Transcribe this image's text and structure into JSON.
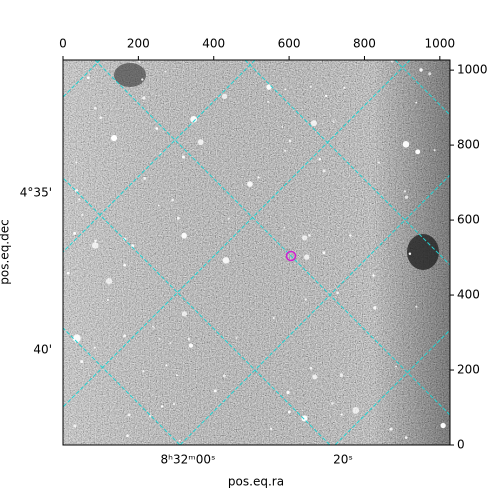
{
  "chart_data": {
    "type": "image",
    "xlabel": "pos.eq.ra",
    "ylabel": "pos.eq.dec",
    "xlim": [
      0,
      1027
    ],
    "ylim": [
      0,
      1027
    ],
    "xticks": [
      0,
      200,
      400,
      600,
      800,
      1000
    ],
    "yticks": [
      0,
      200,
      400,
      600,
      800,
      1000
    ],
    "ra_tick_labels": [
      "8ʰ32ᵐ00ˢ",
      "20ˢ"
    ],
    "dec_tick_labels": [
      "4°35'",
      "40'"
    ]
  }
}
